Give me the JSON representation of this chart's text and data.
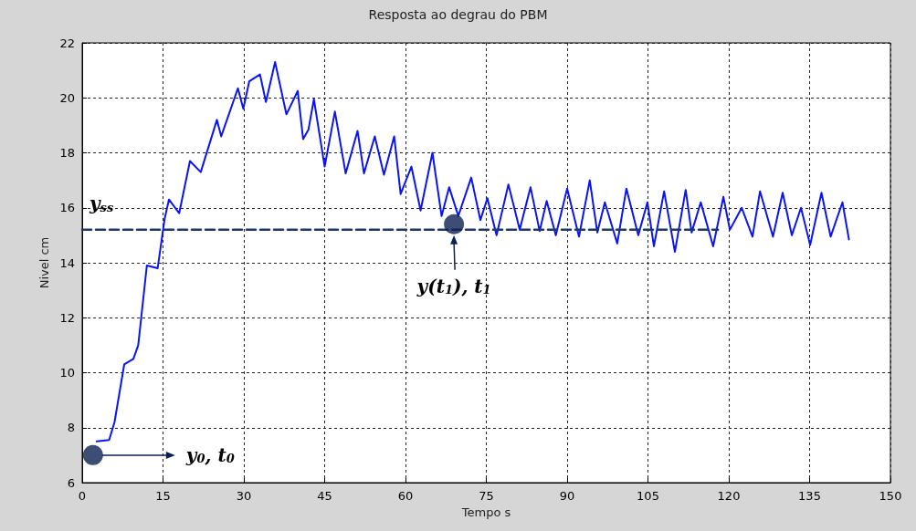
{
  "chart_data": {
    "type": "line",
    "title": "Resposta ao degrau do PBM",
    "xlabel": "Tempo s",
    "ylabel": "Nivel cm",
    "xlim": [
      0,
      150
    ],
    "xticks": [
      0,
      15,
      30,
      45,
      60,
      75,
      90,
      105,
      120,
      135,
      150
    ],
    "ylim": [
      6,
      22
    ],
    "yticks": [
      6,
      8,
      10,
      12,
      14,
      16,
      18,
      20,
      22
    ],
    "grid": true,
    "marker": "none",
    "line_style": "solid",
    "series": [
      {
        "color": "#0a14f5",
        "x": [
          2.7,
          5,
          6,
          7.8,
          9.5,
          10.4,
          12,
          14,
          15.3,
          16.1,
          18,
          20,
          22,
          25,
          25.8,
          28.9,
          29.9,
          31,
          33,
          34.1,
          35.8,
          37.9,
          40,
          41,
          42,
          43,
          45,
          46.9,
          48.9,
          51.1,
          52.3,
          54.3,
          56,
          57.9,
          59.1,
          61.1,
          62.8,
          65,
          66.7,
          68.1,
          69.8,
          72.2,
          73.9,
          75.2,
          76.9,
          79.1,
          81.2,
          83.2,
          84.9,
          86.2,
          87.9,
          90,
          92.2,
          94.2,
          95.6,
          97,
          99.3,
          101,
          103.2,
          104.9,
          106.1,
          108,
          110,
          112,
          113.1,
          114.8,
          117.1,
          119,
          120.2,
          122.4,
          124.4,
          125.8,
          128.2,
          130,
          131.7,
          133.4,
          135.1,
          137.2,
          138.9,
          141.1,
          142.3
        ],
        "values": [
          7.5,
          7.55,
          8.2,
          10.3,
          10.5,
          11,
          13.9,
          13.8,
          15.6,
          16.3,
          15.8,
          17.7,
          17.3,
          19.2,
          18.6,
          20.35,
          19.6,
          20.6,
          20.85,
          19.85,
          21.3,
          19.4,
          20.25,
          18.5,
          18.85,
          19.95,
          17.5,
          19.5,
          17.25,
          18.8,
          17.25,
          18.6,
          17.2,
          18.6,
          16.5,
          17.5,
          15.9,
          18,
          15.7,
          16.75,
          15.7,
          17.1,
          15.55,
          16.35,
          15,
          16.85,
          15.2,
          16.75,
          15.15,
          16.25,
          15,
          16.7,
          14.95,
          17,
          15.1,
          16.2,
          14.7,
          16.7,
          15,
          16.2,
          14.6,
          16.6,
          14.4,
          16.65,
          15.1,
          16.2,
          14.6,
          16.4,
          15.2,
          16,
          14.95,
          16.6,
          14.95,
          16.55,
          15,
          16,
          14.65,
          16.55,
          14.95,
          16.2,
          14.85
        ]
      },
      {
        "color": "#1f3864",
        "type": "line",
        "line_style": "dashed",
        "x": [
          0,
          118
        ],
        "values": [
          15.2,
          15.2
        ]
      },
      {
        "color": "#0d2150",
        "type": "scatter",
        "marker": "circle",
        "x": [
          2,
          69
        ],
        "values": [
          7,
          15.4
        ]
      }
    ],
    "annotations": [
      {
        "text": "y$_{ss}$",
        "x": 0,
        "y": 15.2
      },
      "y$_{0}$, t$_{0}$",
      "y(t$_{1}$), t$_{1}$"
    ]
  }
}
